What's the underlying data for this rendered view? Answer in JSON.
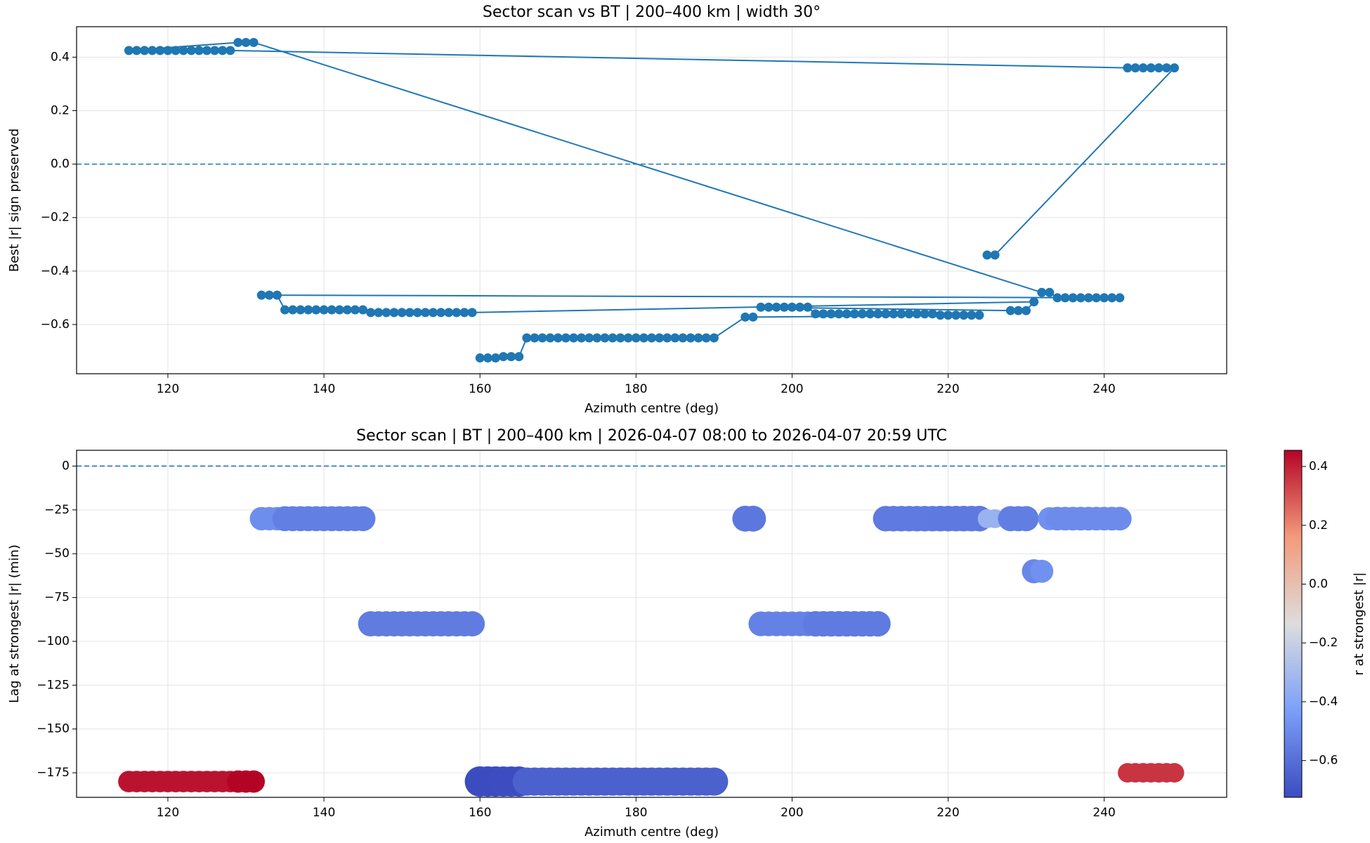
{
  "chart_data": [
    {
      "type": "line",
      "title": "Sector scan vs BT | 200–400 km | width 30°",
      "xlabel": "Azimuth centre (deg)",
      "ylabel": "Best |r| sign preserved",
      "x": [
        225,
        226,
        249,
        248,
        247,
        246,
        245,
        244,
        243,
        128,
        127,
        126,
        125,
        124,
        123,
        122,
        121,
        120,
        119,
        118,
        117,
        116,
        115,
        129,
        130,
        131,
        232,
        233,
        234,
        235,
        236,
        237,
        238,
        239,
        240,
        241,
        242,
        132,
        133,
        134,
        135,
        136,
        137,
        138,
        139,
        140,
        141,
        142,
        143,
        144,
        145,
        146,
        147,
        148,
        149,
        150,
        151,
        152,
        153,
        154,
        155,
        156,
        157,
        158,
        159,
        231,
        230,
        229,
        228,
        196,
        197,
        198,
        199,
        200,
        201,
        202,
        203,
        204,
        205,
        206,
        207,
        208,
        209,
        210,
        211,
        212,
        213,
        214,
        215,
        216,
        217,
        218,
        219,
        220,
        221,
        222,
        223,
        224,
        195,
        194,
        190,
        189,
        188,
        187,
        186,
        185,
        184,
        183,
        182,
        181,
        180,
        179,
        178,
        177,
        176,
        175,
        174,
        173,
        172,
        171,
        170,
        169,
        168,
        167,
        166,
        165,
        164,
        163,
        162,
        161,
        160
      ],
      "series": [
        {
          "color": "#1f77b4",
          "values": [
            -0.34,
            -0.34,
            0.36,
            0.36,
            0.36,
            0.36,
            0.36,
            0.36,
            0.36,
            0.425,
            0.425,
            0.425,
            0.425,
            0.425,
            0.425,
            0.425,
            0.425,
            0.425,
            0.425,
            0.425,
            0.425,
            0.425,
            0.425,
            0.455,
            0.455,
            0.455,
            -0.48,
            -0.48,
            -0.5,
            -0.5,
            -0.5,
            -0.5,
            -0.5,
            -0.5,
            -0.5,
            -0.5,
            -0.5,
            -0.49,
            -0.49,
            -0.49,
            -0.545,
            -0.545,
            -0.545,
            -0.545,
            -0.545,
            -0.545,
            -0.545,
            -0.545,
            -0.545,
            -0.545,
            -0.545,
            -0.555,
            -0.555,
            -0.555,
            -0.555,
            -0.555,
            -0.555,
            -0.555,
            -0.555,
            -0.555,
            -0.555,
            -0.555,
            -0.555,
            -0.555,
            -0.555,
            -0.515,
            -0.548,
            -0.548,
            -0.548,
            -0.535,
            -0.535,
            -0.535,
            -0.535,
            -0.535,
            -0.535,
            -0.535,
            -0.56,
            -0.56,
            -0.56,
            -0.56,
            -0.56,
            -0.56,
            -0.56,
            -0.56,
            -0.56,
            -0.56,
            -0.56,
            -0.56,
            -0.56,
            -0.56,
            -0.56,
            -0.56,
            -0.565,
            -0.565,
            -0.565,
            -0.565,
            -0.565,
            -0.565,
            -0.572,
            -0.572,
            -0.65,
            -0.65,
            -0.65,
            -0.65,
            -0.65,
            -0.65,
            -0.65,
            -0.65,
            -0.65,
            -0.65,
            -0.65,
            -0.65,
            -0.65,
            -0.65,
            -0.65,
            -0.65,
            -0.65,
            -0.65,
            -0.65,
            -0.65,
            -0.65,
            -0.65,
            -0.65,
            -0.65,
            -0.65,
            -0.72,
            -0.72,
            -0.72,
            -0.725,
            -0.725,
            -0.725
          ]
        }
      ],
      "hline": 0,
      "xlim": [
        108.3,
        255.7
      ],
      "ylim": [
        -0.784,
        0.514
      ],
      "xticks": [
        120,
        140,
        160,
        180,
        200,
        220,
        240
      ],
      "yticks": [
        {
          "value": -0.6,
          "label": "−0.6"
        },
        {
          "value": -0.4,
          "label": "−0.4"
        },
        {
          "value": -0.2,
          "label": "−0.2"
        },
        {
          "value": 0,
          "label": "0.0"
        },
        0.2,
        0.4
      ],
      "grid": true
    },
    {
      "type": "scatter",
      "title": "Sector scan | BT | 200–400 km | 2026-04-07 08:00 to 2026-04-07 20:59 UTC",
      "xlabel": "Azimuth centre (deg)",
      "ylabel": "Lag at strongest |r| (min)",
      "clabel": "r at strongest |r|",
      "cmap": "coolwarm",
      "x": [
        115,
        116,
        117,
        118,
        119,
        120,
        121,
        122,
        123,
        124,
        125,
        126,
        127,
        128,
        129,
        130,
        131,
        132,
        133,
        134,
        135,
        136,
        137,
        138,
        139,
        140,
        141,
        142,
        143,
        144,
        145,
        146,
        147,
        148,
        149,
        150,
        151,
        152,
        153,
        154,
        155,
        156,
        157,
        158,
        159,
        160,
        161,
        162,
        163,
        164,
        165,
        166,
        167,
        168,
        169,
        170,
        171,
        172,
        173,
        174,
        175,
        176,
        177,
        178,
        179,
        180,
        181,
        182,
        183,
        184,
        185,
        186,
        187,
        188,
        189,
        190,
        194,
        195,
        196,
        197,
        198,
        199,
        200,
        201,
        202,
        203,
        204,
        205,
        206,
        207,
        208,
        209,
        210,
        211,
        212,
        213,
        214,
        215,
        216,
        217,
        218,
        219,
        220,
        221,
        222,
        223,
        224,
        225,
        226,
        228,
        229,
        230,
        231,
        232,
        233,
        234,
        235,
        236,
        237,
        238,
        239,
        240,
        241,
        242,
        243,
        244,
        245,
        246,
        247,
        248,
        249
      ],
      "y": [
        -180,
        -180,
        -180,
        -180,
        -180,
        -180,
        -180,
        -180,
        -180,
        -180,
        -180,
        -180,
        -180,
        -180,
        -180,
        -180,
        -180,
        -30,
        -30,
        -30,
        -30,
        -30,
        -30,
        -30,
        -30,
        -30,
        -30,
        -30,
        -30,
        -30,
        -30,
        -90,
        -90,
        -90,
        -90,
        -90,
        -90,
        -90,
        -90,
        -90,
        -90,
        -90,
        -90,
        -90,
        -90,
        -180,
        -180,
        -180,
        -180,
        -180,
        -180,
        -180,
        -180,
        -180,
        -180,
        -180,
        -180,
        -180,
        -180,
        -180,
        -180,
        -180,
        -180,
        -180,
        -180,
        -180,
        -180,
        -180,
        -180,
        -180,
        -180,
        -180,
        -180,
        -180,
        -180,
        -180,
        -30,
        -30,
        -90,
        -90,
        -90,
        -90,
        -90,
        -90,
        -90,
        -90,
        -90,
        -90,
        -90,
        -90,
        -90,
        -90,
        -90,
        -90,
        -30,
        -30,
        -30,
        -30,
        -30,
        -30,
        -30,
        -30,
        -30,
        -30,
        -30,
        -30,
        -30,
        -30,
        -30,
        -30,
        -30,
        -30,
        -60,
        -60,
        -30,
        -30,
        -30,
        -30,
        -30,
        -30,
        -30,
        -30,
        -30,
        -30,
        -175,
        -175,
        -175,
        -175,
        -175,
        -175,
        -175
      ],
      "c": [
        0.425,
        0.425,
        0.425,
        0.425,
        0.425,
        0.425,
        0.425,
        0.425,
        0.425,
        0.425,
        0.425,
        0.425,
        0.425,
        0.425,
        0.455,
        0.455,
        0.455,
        -0.49,
        -0.49,
        -0.49,
        -0.545,
        -0.545,
        -0.545,
        -0.545,
        -0.545,
        -0.545,
        -0.545,
        -0.545,
        -0.545,
        -0.545,
        -0.545,
        -0.555,
        -0.555,
        -0.555,
        -0.555,
        -0.555,
        -0.555,
        -0.555,
        -0.555,
        -0.555,
        -0.555,
        -0.555,
        -0.555,
        -0.555,
        -0.555,
        -0.725,
        -0.725,
        -0.725,
        -0.72,
        -0.72,
        -0.72,
        -0.65,
        -0.65,
        -0.65,
        -0.65,
        -0.65,
        -0.65,
        -0.65,
        -0.65,
        -0.65,
        -0.65,
        -0.65,
        -0.65,
        -0.65,
        -0.65,
        -0.65,
        -0.65,
        -0.65,
        -0.65,
        -0.65,
        -0.65,
        -0.65,
        -0.65,
        -0.65,
        -0.65,
        -0.65,
        -0.572,
        -0.572,
        -0.535,
        -0.535,
        -0.535,
        -0.535,
        -0.535,
        -0.535,
        -0.535,
        -0.56,
        -0.56,
        -0.56,
        -0.56,
        -0.56,
        -0.56,
        -0.56,
        -0.56,
        -0.56,
        -0.56,
        -0.56,
        -0.56,
        -0.56,
        -0.56,
        -0.56,
        -0.56,
        -0.565,
        -0.565,
        -0.565,
        -0.565,
        -0.565,
        -0.565,
        -0.34,
        -0.34,
        -0.548,
        -0.548,
        -0.548,
        -0.515,
        -0.48,
        -0.48,
        -0.5,
        -0.5,
        -0.5,
        -0.5,
        -0.5,
        -0.5,
        -0.5,
        -0.5,
        -0.5,
        0.36,
        0.36,
        0.36,
        0.36,
        0.36,
        0.36,
        0.36
      ],
      "clim": [
        -0.725,
        0.455
      ],
      "cticks": [
        {
          "value": -0.6,
          "label": "−0.6"
        },
        {
          "value": -0.4,
          "label": "−0.4"
        },
        {
          "value": -0.2,
          "label": "−0.2"
        },
        {
          "value": 0,
          "label": "0.0"
        },
        0.2,
        0.4
      ],
      "hline": 0,
      "hline_color": "#1f77b4",
      "xlim": [
        108.3,
        255.7
      ],
      "ylim": [
        -189,
        9
      ],
      "xticks": [
        120,
        140,
        160,
        180,
        200,
        220,
        240
      ],
      "yticks": [
        {
          "value": -175,
          "label": "−175"
        },
        {
          "value": -150,
          "label": "−150"
        },
        {
          "value": -125,
          "label": "−125"
        },
        {
          "value": -100,
          "label": "−100"
        },
        {
          "value": -75,
          "label": "−75"
        },
        {
          "value": -50,
          "label": "−50"
        },
        {
          "value": -25,
          "label": "−25"
        },
        0
      ],
      "grid": true
    }
  ]
}
